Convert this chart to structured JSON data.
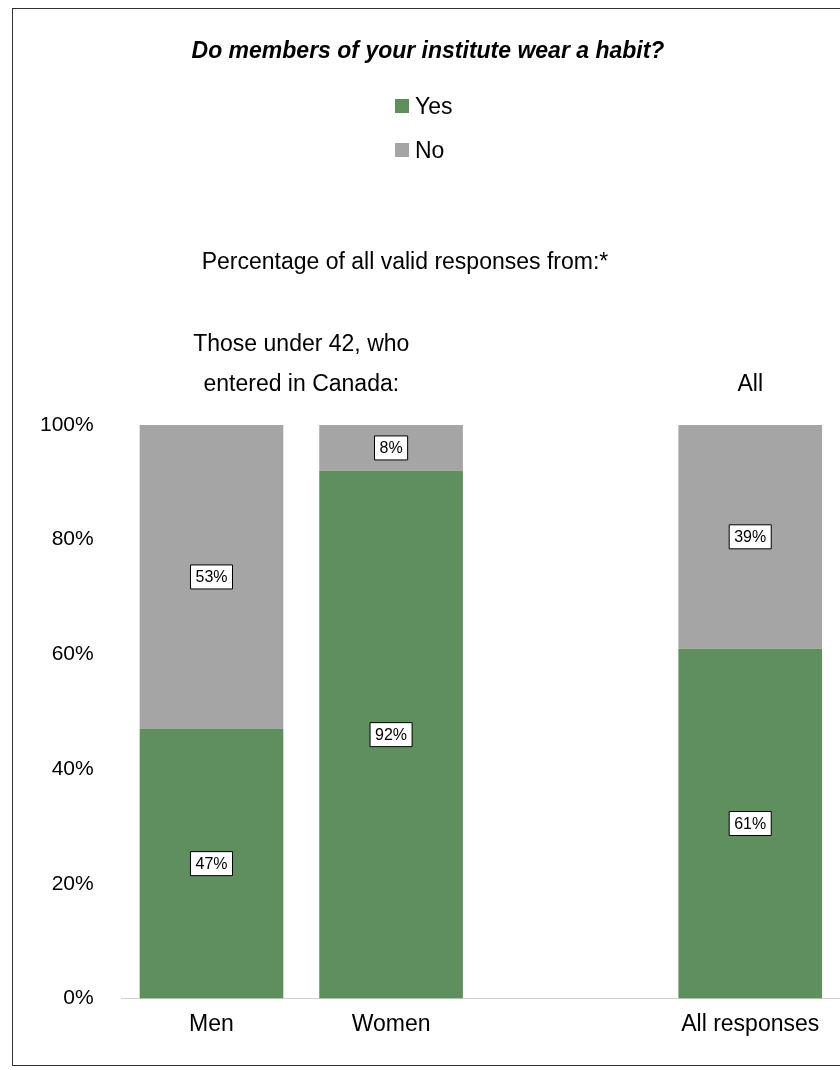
{
  "chart_data": {
    "type": "bar",
    "stacked": true,
    "title": "Do members of your institute wear a habit?",
    "categories": [
      "Men",
      "Women",
      null,
      "All responses"
    ],
    "series": [
      {
        "name": "Yes",
        "color": "#5f8f5e",
        "values": [
          47,
          92,
          null,
          61
        ],
        "value_labels": [
          "47%",
          "92%",
          null,
          "61%"
        ]
      },
      {
        "name": "No",
        "color": "#a5a5a5",
        "values": [
          53,
          8,
          null,
          39
        ],
        "value_labels": [
          "53%",
          "8%",
          null,
          "39%"
        ]
      }
    ],
    "ylim": [
      0,
      100
    ],
    "yticks": [
      {
        "value": 0,
        "label": "0%"
      },
      {
        "value": 20,
        "label": "20%"
      },
      {
        "value": 40,
        "label": "40%"
      },
      {
        "value": 60,
        "label": "60%"
      },
      {
        "value": 80,
        "label": "80%"
      },
      {
        "value": 100,
        "label": "100%"
      }
    ],
    "grid": false,
    "legend": "top",
    "annotations": [
      "Percentage of all valid responses from:*",
      "Those under 42, who entered in Canada:",
      "All"
    ]
  }
}
